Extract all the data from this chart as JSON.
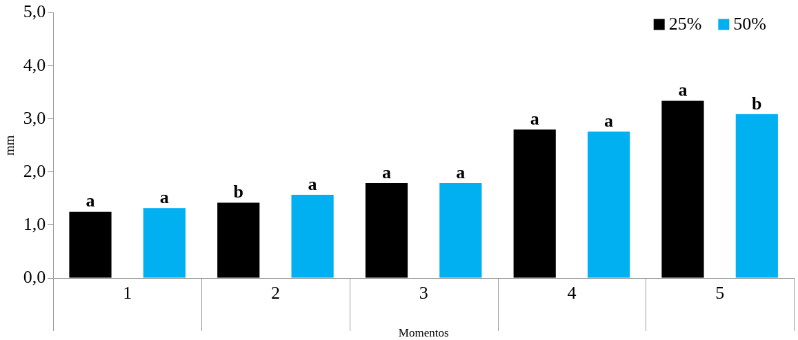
{
  "chart_data": {
    "type": "bar",
    "xlabel": "Momentos",
    "ylabel": "mm",
    "categories": [
      "1",
      "2",
      "3",
      "4",
      "5"
    ],
    "series": [
      {
        "name": "25%",
        "color": "#000000",
        "values": [
          1.25,
          1.42,
          1.79,
          2.8,
          3.34
        ],
        "value_labels": [
          "a",
          "b",
          "a",
          "a",
          "a"
        ]
      },
      {
        "name": "50%",
        "color": "#00b0f0",
        "values": [
          1.32,
          1.57,
          1.79,
          2.76,
          3.09
        ],
        "value_labels": [
          "a",
          "a",
          "a",
          "a",
          "b"
        ]
      }
    ],
    "ylim": [
      0,
      5
    ],
    "yticks": [
      {
        "value": 0,
        "label": "0,0"
      },
      {
        "value": 1,
        "label": "1,0"
      },
      {
        "value": 2,
        "label": "2,0"
      },
      {
        "value": 3,
        "label": "3,0"
      },
      {
        "value": 4,
        "label": "4,0"
      },
      {
        "value": 5,
        "label": "5,0"
      }
    ],
    "grid": false,
    "legend": "top right"
  }
}
